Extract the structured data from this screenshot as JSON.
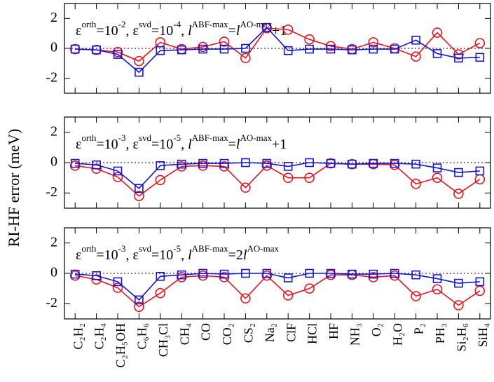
{
  "ylabel": "RI-HF error (meV)",
  "chart_data": [
    {
      "type": "line",
      "ylim": [
        -3,
        3
      ],
      "yticks": [
        -2,
        0,
        2
      ],
      "annotation": [
        {
          "text": "ε"
        },
        {
          "text": "orth",
          "sup": true
        },
        {
          "text": "=10"
        },
        {
          "text": "-2",
          "sup": true
        },
        {
          "text": ", ε"
        },
        {
          "text": "svd",
          "sup": true
        },
        {
          "text": "=10"
        },
        {
          "text": "-4",
          "sup": true
        },
        {
          "text": ", "
        },
        {
          "text": "l",
          "italic": true
        },
        {
          "text": "ABF-max",
          "sup": true
        },
        {
          "text": "="
        },
        {
          "text": "l",
          "italic": true
        },
        {
          "text": "AO-max",
          "sup": true
        },
        {
          "text": "+1"
        }
      ],
      "series": [
        {
          "color": "#e8141e",
          "marker": "circle",
          "values": [
            -0.05,
            -0.1,
            -0.25,
            -0.85,
            0.4,
            -0.05,
            0.1,
            0.45,
            -0.65,
            1.35,
            1.25,
            0.6,
            0.15,
            -0.05,
            0.4,
            0.0,
            -0.55,
            1.05,
            -0.4,
            0.35
          ]
        },
        {
          "color": "#1414d2",
          "marker": "square",
          "values": [
            -0.05,
            -0.1,
            -0.4,
            -1.6,
            -0.15,
            -0.1,
            -0.05,
            -0.05,
            0.0,
            1.4,
            -0.15,
            -0.05,
            -0.05,
            -0.1,
            -0.05,
            -0.05,
            0.55,
            -0.35,
            -0.65,
            -0.6
          ]
        }
      ]
    },
    {
      "type": "line",
      "ylim": [
        -3,
        3
      ],
      "yticks": [
        -2,
        0,
        2
      ],
      "annotation": [
        {
          "text": "ε"
        },
        {
          "text": "orth",
          "sup": true
        },
        {
          "text": "=10"
        },
        {
          "text": "-3",
          "sup": true
        },
        {
          "text": ", ε"
        },
        {
          "text": "svd",
          "sup": true
        },
        {
          "text": "=10"
        },
        {
          "text": "-5",
          "sup": true
        },
        {
          "text": ", "
        },
        {
          "text": "l",
          "italic": true
        },
        {
          "text": "ABF-max",
          "sup": true
        },
        {
          "text": "="
        },
        {
          "text": "l",
          "italic": true
        },
        {
          "text": "AO-max",
          "sup": true
        },
        {
          "text": "+1"
        }
      ],
      "series": [
        {
          "color": "#e8141e",
          "marker": "circle",
          "values": [
            -0.2,
            -0.4,
            -0.95,
            -2.2,
            -1.15,
            -0.25,
            -0.2,
            -0.25,
            -1.65,
            -0.2,
            -1.0,
            -1.0,
            -0.05,
            -0.1,
            -0.1,
            -0.15,
            -1.4,
            -1.0,
            -2.05,
            -1.1
          ]
        },
        {
          "color": "#1414d2",
          "marker": "square",
          "values": [
            -0.05,
            -0.15,
            -0.55,
            -1.7,
            -0.2,
            -0.1,
            -0.05,
            -0.05,
            0.0,
            -0.05,
            -0.25,
            0.0,
            -0.05,
            -0.1,
            -0.05,
            -0.05,
            -0.1,
            -0.35,
            -0.65,
            -0.55
          ]
        }
      ]
    },
    {
      "type": "line",
      "ylim": [
        -3,
        3
      ],
      "yticks": [
        -2,
        0,
        2
      ],
      "annotation": [
        {
          "text": "ε"
        },
        {
          "text": "orth",
          "sup": true
        },
        {
          "text": "=10"
        },
        {
          "text": "-3",
          "sup": true
        },
        {
          "text": ", ε"
        },
        {
          "text": "svd",
          "sup": true
        },
        {
          "text": "=10"
        },
        {
          "text": "-5",
          "sup": true
        },
        {
          "text": ", "
        },
        {
          "text": "l",
          "italic": true
        },
        {
          "text": "ABF-max",
          "sup": true
        },
        {
          "text": "=2"
        },
        {
          "text": "l",
          "italic": true
        },
        {
          "text": "AO-max",
          "sup": true
        }
      ],
      "categories": [
        "C₂H₂",
        "C₂H₄",
        "C₂H₅OH",
        "C₆H₆",
        "CH₃Cl",
        "CH₄",
        "CO",
        "CO₂",
        "CS₂",
        "Na₂",
        "ClF",
        "HCl",
        "HF",
        "NH₃",
        "O₂",
        "H₂O",
        "P₂",
        "PH₃",
        "Si₂H₆",
        "SiH₄"
      ],
      "series": [
        {
          "color": "#e8141e",
          "marker": "circle",
          "values": [
            -0.15,
            -0.4,
            -0.95,
            -2.2,
            -1.3,
            -0.25,
            -0.15,
            -0.25,
            -1.65,
            -0.15,
            -1.45,
            -1.0,
            -0.1,
            -0.1,
            -0.25,
            -0.15,
            -1.5,
            -1.05,
            -2.1,
            -1.15
          ]
        },
        {
          "color": "#1414d2",
          "marker": "square",
          "values": [
            -0.05,
            -0.15,
            -0.55,
            -1.75,
            -0.2,
            -0.1,
            0.0,
            -0.05,
            0.0,
            0.0,
            -0.3,
            0.0,
            0.0,
            -0.05,
            -0.05,
            0.0,
            -0.1,
            -0.35,
            -0.65,
            -0.55
          ]
        }
      ]
    }
  ]
}
